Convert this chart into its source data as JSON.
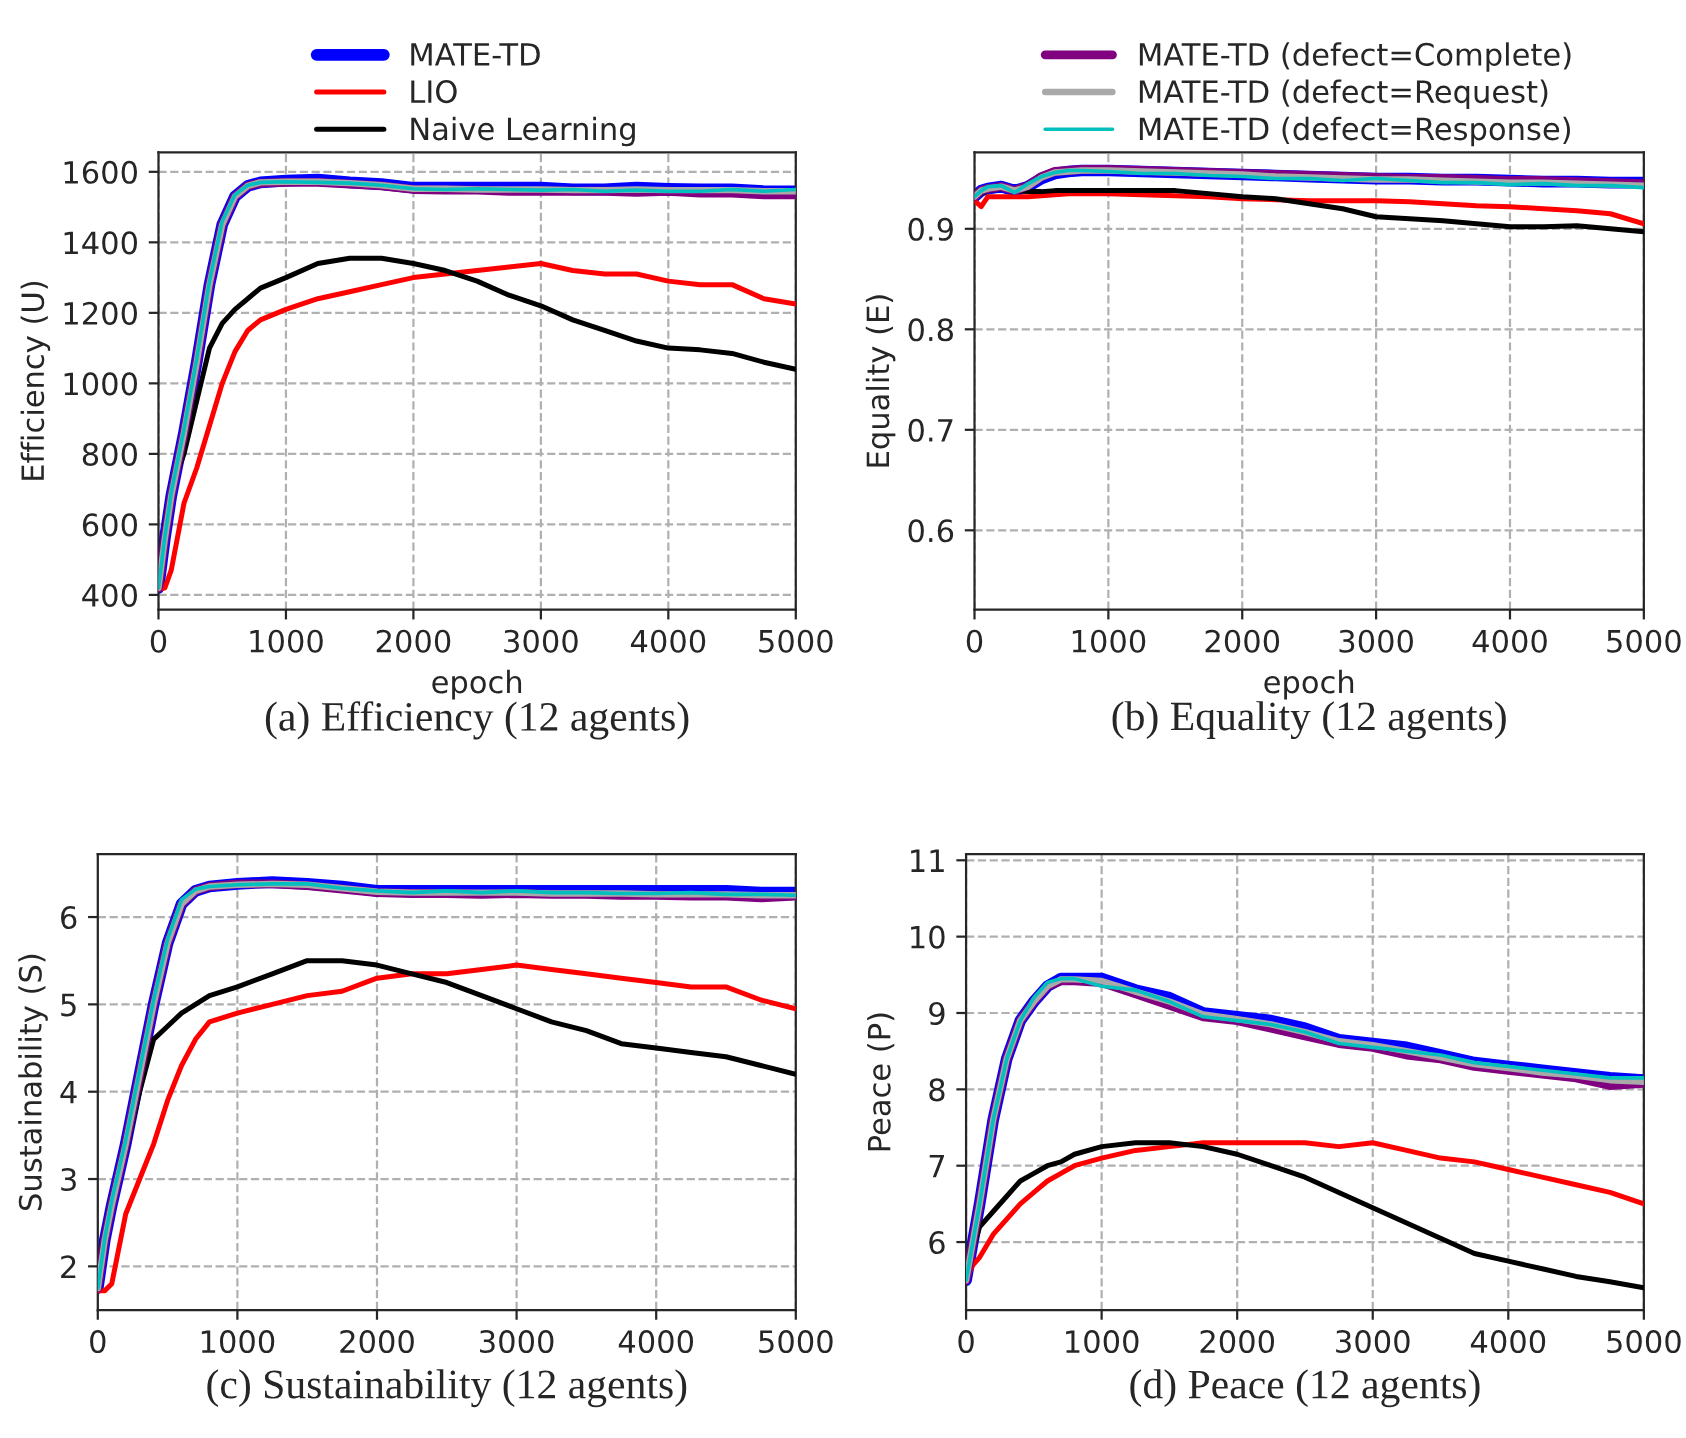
{
  "chart_data": [
    {
      "type": "line",
      "title": "(a) Efficiency (12 agents)",
      "xlabel": "epoch",
      "ylabel": "Efficiency (U)",
      "xlim": [
        0,
        5000
      ],
      "xticks": [
        0,
        1000,
        2000,
        3000,
        4000,
        5000
      ],
      "ylim": [
        358,
        1655
      ],
      "yticks": [
        400,
        600,
        800,
        1000,
        1200,
        1400,
        1600
      ],
      "grid": true,
      "legend": "top",
      "line_style": "solid",
      "x": [
        0,
        50,
        100,
        200,
        300,
        400,
        500,
        600,
        700,
        800,
        1000,
        1250,
        1500,
        1750,
        2000,
        2250,
        2500,
        2750,
        3000,
        3250,
        3500,
        3750,
        4000,
        4250,
        4500,
        4750,
        5000
      ],
      "series": [
        {
          "name": "MATE-TD",
          "color": "#0000ff",
          "values": [
            420,
            560,
            680,
            860,
            1060,
            1280,
            1450,
            1530,
            1560,
            1570,
            1575,
            1578,
            1570,
            1565,
            1555,
            1555,
            1555,
            1555,
            1555,
            1550,
            1550,
            1555,
            1552,
            1550,
            1550,
            1545,
            1545
          ]
        },
        {
          "name": "LIO",
          "color": "#ff0000",
          "values": [
            415,
            420,
            470,
            660,
            760,
            880,
            1000,
            1090,
            1150,
            1180,
            1210,
            1240,
            1260,
            1280,
            1300,
            1310,
            1320,
            1330,
            1340,
            1320,
            1310,
            1310,
            1290,
            1280,
            1280,
            1240,
            1225
          ]
        },
        {
          "name": "Naive Learning",
          "color": "#000000",
          "values": [
            420,
            600,
            700,
            800,
            950,
            1100,
            1170,
            1210,
            1240,
            1270,
            1300,
            1340,
            1355,
            1355,
            1340,
            1320,
            1290,
            1250,
            1220,
            1180,
            1150,
            1120,
            1100,
            1095,
            1085,
            1060,
            1040
          ]
        },
        {
          "color": "#800080",
          "values": [
            420,
            560,
            680,
            860,
            1060,
            1280,
            1450,
            1530,
            1560,
            1568,
            1570,
            1570,
            1565,
            1560,
            1550,
            1548,
            1548,
            1545,
            1545,
            1545,
            1545,
            1542,
            1545,
            1540,
            1540,
            1535,
            1535
          ]
        },
        {
          "color": "#a9a9a9",
          "values": [
            420,
            560,
            680,
            860,
            1060,
            1280,
            1450,
            1530,
            1560,
            1570,
            1572,
            1572,
            1568,
            1562,
            1552,
            1552,
            1550,
            1550,
            1550,
            1548,
            1548,
            1550,
            1548,
            1548,
            1548,
            1545,
            1545
          ]
        },
        {
          "color": "#00bfbf",
          "values": [
            420,
            565,
            690,
            870,
            1070,
            1290,
            1460,
            1535,
            1562,
            1570,
            1572,
            1570,
            1568,
            1562,
            1552,
            1550,
            1552,
            1550,
            1548,
            1550,
            1545,
            1548,
            1545,
            1545,
            1550,
            1545,
            1550
          ]
        }
      ]
    },
    {
      "type": "line",
      "title": "(b) Equality (12 agents)",
      "xlabel": "epoch",
      "ylabel": "Equality (E)",
      "xlim": [
        0,
        5000
      ],
      "xticks": [
        0,
        1000,
        2000,
        3000,
        4000,
        5000
      ],
      "ylim": [
        0.521,
        0.976
      ],
      "yticks": [
        0.6,
        0.7,
        0.8,
        0.9
      ],
      "grid": true,
      "legend": "top",
      "line_style": "solid",
      "x": [
        0,
        50,
        100,
        200,
        300,
        400,
        500,
        600,
        700,
        800,
        1000,
        1250,
        1500,
        1750,
        2000,
        2250,
        2500,
        2750,
        3000,
        3250,
        3500,
        3750,
        4000,
        4250,
        4500,
        4750,
        5000
      ],
      "series": [
        {
          "color": "#0000ff",
          "values": [
            0.932,
            0.938,
            0.94,
            0.942,
            0.938,
            0.942,
            0.95,
            0.955,
            0.957,
            0.958,
            0.958,
            0.957,
            0.956,
            0.955,
            0.954,
            0.953,
            0.952,
            0.951,
            0.95,
            0.95,
            0.949,
            0.949,
            0.948,
            0.947,
            0.947,
            0.946,
            0.946
          ]
        },
        {
          "color": "#ff0000",
          "values": [
            0.928,
            0.922,
            0.932,
            0.932,
            0.932,
            0.932,
            0.933,
            0.934,
            0.935,
            0.935,
            0.935,
            0.934,
            0.933,
            0.932,
            0.93,
            0.929,
            0.928,
            0.928,
            0.928,
            0.927,
            0.925,
            0.923,
            0.922,
            0.92,
            0.918,
            0.915,
            0.905
          ]
        },
        {
          "color": "#000000",
          "values": [
            0.932,
            0.935,
            0.938,
            0.94,
            0.938,
            0.937,
            0.937,
            0.938,
            0.938,
            0.938,
            0.938,
            0.938,
            0.938,
            0.935,
            0.932,
            0.93,
            0.925,
            0.92,
            0.912,
            0.91,
            0.908,
            0.905,
            0.902,
            0.902,
            0.903,
            0.9,
            0.897
          ]
        },
        {
          "name": "MATE-TD (defect=Complete)",
          "color": "#800080",
          "values": [
            0.932,
            0.938,
            0.94,
            0.942,
            0.938,
            0.943,
            0.952,
            0.957,
            0.958,
            0.959,
            0.959,
            0.958,
            0.957,
            0.956,
            0.955,
            0.954,
            0.953,
            0.952,
            0.951,
            0.95,
            0.95,
            0.949,
            0.948,
            0.948,
            0.947,
            0.946,
            0.945
          ]
        },
        {
          "name": "MATE-TD (defect=Request)",
          "color": "#a9a9a9",
          "values": [
            0.932,
            0.938,
            0.94,
            0.942,
            0.938,
            0.942,
            0.951,
            0.956,
            0.957,
            0.958,
            0.958,
            0.957,
            0.956,
            0.955,
            0.954,
            0.952,
            0.951,
            0.95,
            0.949,
            0.949,
            0.948,
            0.947,
            0.946,
            0.946,
            0.945,
            0.944,
            0.943
          ]
        },
        {
          "name": "MATE-TD (defect=Response)",
          "color": "#00bfbf",
          "values": [
            0.932,
            0.938,
            0.942,
            0.943,
            0.936,
            0.945,
            0.952,
            0.956,
            0.958,
            0.958,
            0.957,
            0.955,
            0.955,
            0.953,
            0.952,
            0.95,
            0.95,
            0.948,
            0.95,
            0.948,
            0.946,
            0.946,
            0.944,
            0.945,
            0.943,
            0.943,
            0.941
          ]
        }
      ]
    },
    {
      "type": "line",
      "title": "(c) Sustainability (12 agents)",
      "ylabel": "Sustainability (S)",
      "xlim": [
        0,
        5000
      ],
      "xticks": [
        0,
        1000,
        2000,
        3000,
        4000,
        5000
      ],
      "ylim": [
        1.5,
        6.72
      ],
      "yticks": [
        2,
        3,
        4,
        5,
        6
      ],
      "grid": true,
      "line_style": "solid",
      "x": [
        0,
        50,
        100,
        200,
        300,
        400,
        500,
        600,
        700,
        800,
        1000,
        1250,
        1500,
        1750,
        2000,
        2250,
        2500,
        2750,
        3000,
        3250,
        3500,
        3750,
        4000,
        4250,
        4500,
        4750,
        5000
      ],
      "series": [
        {
          "color": "#0000ff",
          "values": [
            1.75,
            2.3,
            2.7,
            3.4,
            4.2,
            5.0,
            5.7,
            6.15,
            6.3,
            6.35,
            6.38,
            6.4,
            6.38,
            6.35,
            6.3,
            6.3,
            6.3,
            6.3,
            6.3,
            6.3,
            6.3,
            6.3,
            6.3,
            6.3,
            6.3,
            6.28,
            6.28
          ]
        },
        {
          "color": "#ff0000",
          "values": [
            1.72,
            1.72,
            1.8,
            2.6,
            3.0,
            3.4,
            3.9,
            4.3,
            4.6,
            4.8,
            4.9,
            5.0,
            5.1,
            5.15,
            5.3,
            5.35,
            5.35,
            5.4,
            5.45,
            5.4,
            5.35,
            5.3,
            5.25,
            5.2,
            5.2,
            5.05,
            4.95
          ]
        },
        {
          "color": "#000000",
          "values": [
            1.75,
            2.4,
            2.8,
            3.3,
            4.0,
            4.6,
            4.75,
            4.9,
            5.0,
            5.1,
            5.2,
            5.35,
            5.5,
            5.5,
            5.45,
            5.35,
            5.25,
            5.1,
            4.95,
            4.8,
            4.7,
            4.55,
            4.5,
            4.45,
            4.4,
            4.3,
            4.2
          ]
        },
        {
          "color": "#800080",
          "values": [
            1.75,
            2.3,
            2.7,
            3.4,
            4.2,
            5.0,
            5.7,
            6.15,
            6.3,
            6.35,
            6.38,
            6.38,
            6.36,
            6.32,
            6.28,
            6.27,
            6.27,
            6.26,
            6.27,
            6.26,
            6.26,
            6.25,
            6.25,
            6.24,
            6.24,
            6.22,
            6.24
          ]
        },
        {
          "color": "#a9a9a9",
          "values": [
            1.75,
            2.3,
            2.7,
            3.4,
            4.2,
            5.0,
            5.7,
            6.15,
            6.3,
            6.35,
            6.37,
            6.38,
            6.37,
            6.33,
            6.29,
            6.28,
            6.28,
            6.28,
            6.28,
            6.27,
            6.27,
            6.27,
            6.26,
            6.26,
            6.26,
            6.25,
            6.25
          ]
        },
        {
          "color": "#00bfbf",
          "values": [
            1.75,
            2.32,
            2.75,
            3.45,
            4.25,
            5.05,
            5.75,
            6.2,
            6.32,
            6.35,
            6.37,
            6.38,
            6.38,
            6.33,
            6.3,
            6.28,
            6.3,
            6.28,
            6.3,
            6.28,
            6.28,
            6.27,
            6.27,
            6.28,
            6.26,
            6.26,
            6.25
          ]
        }
      ]
    },
    {
      "type": "line",
      "title": "(d) Peace (12 agents)",
      "ylabel": "Peace (P)",
      "xlim": [
        0,
        5000
      ],
      "xticks": [
        0,
        1000,
        2000,
        3000,
        4000,
        5000
      ],
      "ylim": [
        5.11,
        11.08
      ],
      "yticks": [
        6,
        7,
        8,
        9,
        10,
        11
      ],
      "grid": true,
      "line_style": "solid",
      "x": [
        0,
        50,
        100,
        200,
        300,
        400,
        500,
        600,
        700,
        800,
        1000,
        1250,
        1500,
        1750,
        2000,
        2250,
        2500,
        2750,
        3000,
        3250,
        3500,
        3750,
        4000,
        4250,
        4500,
        4750,
        5000
      ],
      "series": [
        {
          "color": "#0000ff",
          "values": [
            5.5,
            6.0,
            6.5,
            7.6,
            8.4,
            8.9,
            9.15,
            9.35,
            9.45,
            9.45,
            9.45,
            9.3,
            9.2,
            9.0,
            8.95,
            8.9,
            8.8,
            8.65,
            8.6,
            8.55,
            8.45,
            8.35,
            8.3,
            8.25,
            8.2,
            8.15,
            8.12
          ]
        },
        {
          "color": "#ff0000",
          "values": [
            5.5,
            5.7,
            5.8,
            6.1,
            6.3,
            6.5,
            6.65,
            6.8,
            6.9,
            7.0,
            7.1,
            7.2,
            7.25,
            7.3,
            7.3,
            7.3,
            7.3,
            7.25,
            7.3,
            7.2,
            7.1,
            7.05,
            6.95,
            6.85,
            6.75,
            6.65,
            6.5
          ]
        },
        {
          "color": "#000000",
          "values": [
            5.5,
            5.9,
            6.2,
            6.4,
            6.6,
            6.8,
            6.9,
            7.0,
            7.05,
            7.15,
            7.25,
            7.3,
            7.3,
            7.25,
            7.15,
            7.0,
            6.85,
            6.65,
            6.45,
            6.25,
            6.05,
            5.85,
            5.75,
            5.65,
            5.55,
            5.48,
            5.4
          ]
        },
        {
          "color": "#800080",
          "values": [
            5.5,
            6.0,
            6.5,
            7.6,
            8.4,
            8.9,
            9.15,
            9.35,
            9.42,
            9.42,
            9.4,
            9.25,
            9.1,
            8.95,
            8.9,
            8.8,
            8.7,
            8.6,
            8.55,
            8.45,
            8.4,
            8.3,
            8.25,
            8.2,
            8.15,
            8.05,
            8.08
          ]
        },
        {
          "color": "#a9a9a9",
          "values": [
            5.5,
            6.0,
            6.5,
            7.6,
            8.4,
            8.9,
            9.15,
            9.35,
            9.44,
            9.44,
            9.42,
            9.28,
            9.15,
            8.98,
            8.92,
            8.85,
            8.75,
            8.63,
            8.58,
            8.5,
            8.42,
            8.33,
            8.28,
            8.22,
            8.18,
            8.12,
            8.1
          ]
        },
        {
          "color": "#00bfbf",
          "values": [
            5.5,
            6.0,
            6.5,
            7.6,
            8.4,
            8.9,
            9.2,
            9.4,
            9.45,
            9.45,
            9.35,
            9.3,
            9.15,
            8.95,
            8.9,
            8.85,
            8.75,
            8.6,
            8.55,
            8.5,
            8.45,
            8.35,
            8.3,
            8.25,
            8.2,
            8.15,
            8.15
          ]
        }
      ]
    }
  ]
}
